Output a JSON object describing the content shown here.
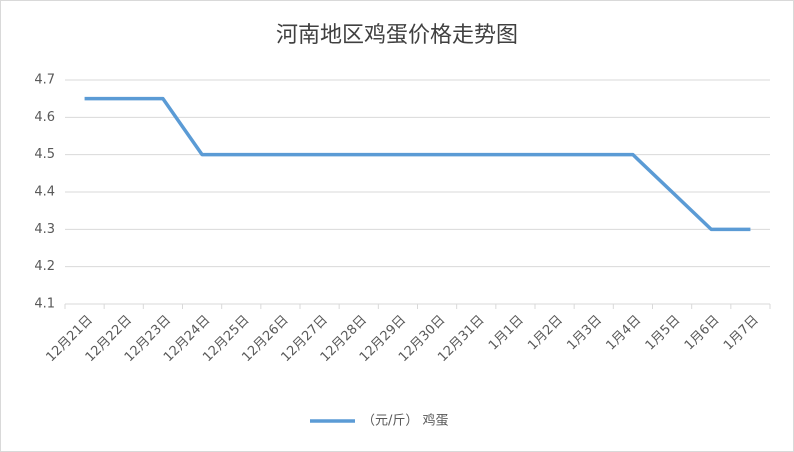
{
  "chart_data": {
    "type": "line",
    "title": "河南地区鸡蛋价格走势图",
    "categories": [
      "12月21日",
      "12月22日",
      "12月23日",
      "12月24日",
      "12月25日",
      "12月26日",
      "12月27日",
      "12月28日",
      "12月29日",
      "12月30日",
      "12月31日",
      "1月1日",
      "1月2日",
      "1月3日",
      "1月4日",
      "1月5日",
      "1月6日",
      "1月7日"
    ],
    "series": [
      {
        "name": "（元/斤） 鸡蛋",
        "color": "#5b9bd5",
        "values": [
          4.65,
          4.65,
          4.65,
          4.5,
          4.5,
          4.5,
          4.5,
          4.5,
          4.5,
          4.5,
          4.5,
          4.5,
          4.5,
          4.5,
          4.5,
          4.4,
          4.3,
          4.3
        ]
      }
    ],
    "ylim": [
      4.1,
      4.7
    ],
    "yticks": [
      4.1,
      4.2,
      4.3,
      4.4,
      4.5,
      4.6,
      4.7
    ],
    "grid": true,
    "legend": "bottom"
  }
}
